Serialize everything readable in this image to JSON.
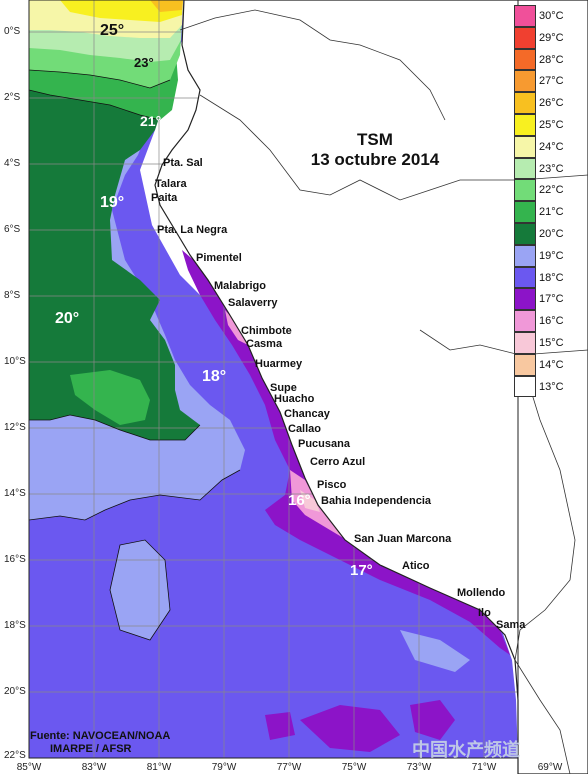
{
  "title": {
    "line1": "TSM",
    "line2": "13 octubre 2014"
  },
  "latitudes": [
    "0°S",
    "2°S",
    "4°S",
    "6°S",
    "8°S",
    "10°S",
    "12°S",
    "14°S",
    "16°S",
    "18°S",
    "20°S",
    "22°S"
  ],
  "longitudes": [
    "85°W",
    "83°W",
    "81°W",
    "79°W",
    "77°W",
    "75°W",
    "73°W",
    "71°W",
    "69°W"
  ],
  "legend": [
    {
      "label": "30°C",
      "color": "#f0509a"
    },
    {
      "label": "29°C",
      "color": "#f04030"
    },
    {
      "label": "28°C",
      "color": "#f46a28"
    },
    {
      "label": "27°C",
      "color": "#f79a30"
    },
    {
      "label": "26°C",
      "color": "#f8c020"
    },
    {
      "label": "25°C",
      "color": "#f8f020"
    },
    {
      "label": "24°C",
      "color": "#f6f6a8"
    },
    {
      "label": "23°C",
      "color": "#b6ecb0"
    },
    {
      "label": "22°C",
      "color": "#72dc78"
    },
    {
      "label": "21°C",
      "color": "#34b44e"
    },
    {
      "label": "20°C",
      "color": "#157a3a"
    },
    {
      "label": "19°C",
      "color": "#9aa4f4"
    },
    {
      "label": "18°C",
      "color": "#6b58f0"
    },
    {
      "label": "17°C",
      "color": "#8c14c8"
    },
    {
      "label": "16°C",
      "color": "#f098d8"
    },
    {
      "label": "15°C",
      "color": "#f8c8d8"
    },
    {
      "label": "14°C",
      "color": "#f8c8a0"
    },
    {
      "label": "13°C",
      "color": "#ffffff"
    }
  ],
  "isotherm_labels": [
    "25°",
    "23°",
    "21°",
    "19°",
    "20°",
    "18°",
    "16°",
    "17°"
  ],
  "places": [
    "Pta. Sal",
    "Talara",
    "Paita",
    "Pta. La Negra",
    "Pimentel",
    "Malabrigo",
    "Salaverry",
    "Chimbote",
    "Casma",
    "Huarmey",
    "Supe",
    "Huacho",
    "Chancay",
    "Callao",
    "Pucusana",
    "Cerro Azul",
    "Pisco",
    "Bahia Independencia",
    "San Juan Marcona",
    "Atico",
    "Mollendo",
    "Ilo",
    "Sama"
  ],
  "source": {
    "line1": "Fuente: NAVOCEAN/NOAA",
    "line2": "IMARPE / AFSR"
  },
  "watermark": "中国水产频道"
}
